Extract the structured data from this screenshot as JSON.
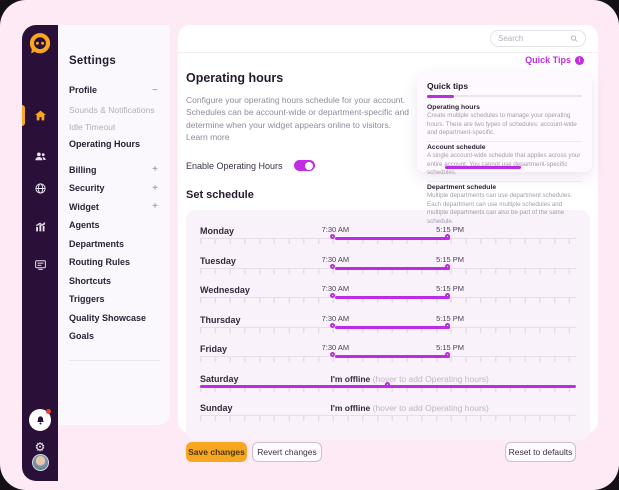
{
  "accent": "#bb2ce2",
  "orange": "#f6a71f",
  "rail_color": "#2a1038",
  "topbar": {
    "search_placeholder": "Search"
  },
  "quick_tips_link": "Quick Tips",
  "sidebar": {
    "title": "Settings",
    "groups": [
      {
        "label": "Profile",
        "expand": "−",
        "children": [
          {
            "label": "Sounds & Notifications",
            "active": false
          },
          {
            "label": "Idle Timeout",
            "active": false
          },
          {
            "label": "Operating Hours",
            "active": true
          }
        ]
      },
      {
        "label": "Billing",
        "expand": "+"
      },
      {
        "label": "Security",
        "expand": "+"
      },
      {
        "label": "Widget",
        "expand": "+"
      },
      {
        "label": "Agents",
        "expand": ""
      },
      {
        "label": "Departments",
        "expand": ""
      },
      {
        "label": "Routing Rules",
        "expand": ""
      },
      {
        "label": "Shortcuts",
        "expand": ""
      },
      {
        "label": "Triggers",
        "expand": ""
      },
      {
        "label": "Quality Showcase",
        "expand": ""
      },
      {
        "label": "Goals",
        "expand": ""
      }
    ]
  },
  "main": {
    "title": "Operating hours",
    "description": "Configure your operating hours schedule for your account. Schedules can be account-wide or department-specific and determine when your widget appears online to visitors.",
    "learn_more": "Learn more",
    "enable_label": "Enable Operating Hours",
    "toggle_on": true,
    "schedule_heading": "Set schedule"
  },
  "schedule": {
    "start_pct": 36,
    "end_pct": 66.5,
    "offline_left_pct": 34.7,
    "days": [
      {
        "name": "Monday",
        "start": "7:30 AM",
        "end": "5:15 PM",
        "offline": false,
        "hover": false
      },
      {
        "name": "Tuesday",
        "start": "7:30 AM",
        "end": "5:15 PM",
        "offline": false,
        "hover": false
      },
      {
        "name": "Wednesday",
        "start": "7:30 AM",
        "end": "5:15 PM",
        "offline": false,
        "hover": false
      },
      {
        "name": "Thursday",
        "start": "7:30 AM",
        "end": "5:15 PM",
        "offline": false,
        "hover": false
      },
      {
        "name": "Friday",
        "start": "7:30 AM",
        "end": "5:15 PM",
        "offline": false,
        "hover": false
      },
      {
        "name": "Saturday",
        "offline": true,
        "offline_label": "I'm offline",
        "offline_hint": "(hover to add Operating hours)",
        "hover": true
      },
      {
        "name": "Sunday",
        "offline": true,
        "offline_label": "I'm offline",
        "offline_hint": "(hover to add Operating hours)",
        "hover": false
      }
    ]
  },
  "quick_tips": {
    "title": "Quick tips",
    "sections": [
      {
        "title": "Operating hours",
        "body": "Create multiple schedules to manage your operating hours. There are two types of schedules: account-wide and department-specific."
      },
      {
        "title": "Account schedule",
        "body": "A single account-wide schedule that applies across your entire account. You cannot use department-specific schedules."
      },
      {
        "title": "Department schedule",
        "body": "Multiple departments can use department schedules. Each department can use multiple schedules and multiple departments can also be part of the same schedule."
      }
    ]
  },
  "footer": {
    "save": "Save changes",
    "revert": "Revert changes",
    "reset": "Reset to defaults"
  }
}
